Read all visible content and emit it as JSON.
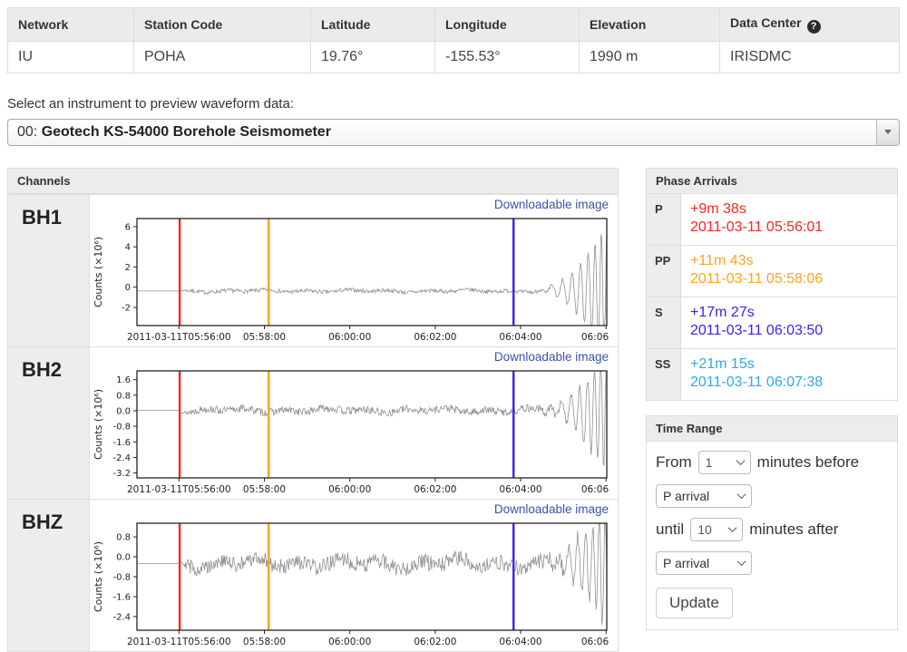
{
  "station_table": {
    "headers": [
      "Network",
      "Station Code",
      "Latitude",
      "Longitude",
      "Elevation",
      "Data Center"
    ],
    "help_icon": "?",
    "row": [
      "IU",
      "POHA",
      "19.76°",
      "-155.53°",
      "1990 m",
      "IRISDMC"
    ]
  },
  "instrument_select": {
    "label": "Select an instrument to preview waveform data:",
    "value_prefix": "00: ",
    "value_name": "Geotech KS-54000 Borehole Seismometer"
  },
  "channels_panel": {
    "title": "Channels",
    "download_link": "Downloadable image",
    "channels": [
      "BH1",
      "BH2",
      "BHZ"
    ]
  },
  "phase_panel": {
    "title": "Phase Arrivals",
    "rows": [
      {
        "phase": "P",
        "offset": "+9m 38s",
        "time": "2011-03-11 05:56:01",
        "color": "#f4281e"
      },
      {
        "phase": "PP",
        "offset": "+11m 43s",
        "time": "2011-03-11 05:58:06",
        "color": "#ffa41e"
      },
      {
        "phase": "S",
        "offset": "+17m 27s",
        "time": "2011-03-11 06:03:50",
        "color": "#3a22f0"
      },
      {
        "phase": "SS",
        "offset": "+21m 15s",
        "time": "2011-03-11 06:07:38",
        "color": "#2fa9e6"
      }
    ]
  },
  "time_range_panel": {
    "title": "Time Range",
    "from_label": "From",
    "before_value": "1",
    "before_label": "minutes before",
    "before_phase": "P arrival",
    "until_label": "until",
    "after_value": "10",
    "after_label": "minutes after",
    "after_phase": "P arrival",
    "update_label": "Update"
  },
  "chart_data": [
    {
      "type": "line",
      "name": "BH1",
      "ylabel": "Counts (×10⁶)",
      "yticks": [
        {
          "v": 6,
          "label": "6"
        },
        {
          "v": 4,
          "label": "4"
        },
        {
          "v": 2,
          "label": "2"
        },
        {
          "v": 0,
          "label": "0"
        },
        {
          "v": -2,
          "label": "-2"
        }
      ],
      "ylim": [
        -3.8,
        6.8
      ],
      "t_range": [
        0,
        660
      ],
      "xticks": [
        {
          "t": 59,
          "label": "2011-03-11T05:56:00"
        },
        {
          "t": 179,
          "label": "05:58:00"
        },
        {
          "t": 299,
          "label": "06:00:00"
        },
        {
          "t": 419,
          "label": "06:02:00"
        },
        {
          "t": 539,
          "label": "06:04:00"
        },
        {
          "t": 659,
          "label": "06:06"
        }
      ],
      "arrivals": [
        {
          "phase": "P",
          "t": 60,
          "color": "#f4281e"
        },
        {
          "phase": "PP",
          "t": 185,
          "color": "#ffa41e"
        },
        {
          "phase": "S",
          "t": 529,
          "color": "#3a22f0"
        }
      ],
      "baseline": -0.38,
      "noise_amp": 0.2,
      "burst_amp": 7.0,
      "burst_t0": 540,
      "p_onset": 60,
      "seed": 7,
      "line_color": "#909090"
    },
    {
      "type": "line",
      "name": "BH2",
      "ylabel": "Counts (×10⁶)",
      "yticks": [
        {
          "v": 1.6,
          "label": "1.6"
        },
        {
          "v": 0.8,
          "label": "0.8"
        },
        {
          "v": 0.0,
          "label": "0.0"
        },
        {
          "v": -0.8,
          "label": "-0.8"
        },
        {
          "v": -1.6,
          "label": "-1.6"
        },
        {
          "v": -2.4,
          "label": "-2.4"
        },
        {
          "v": -3.2,
          "label": "-3.2"
        }
      ],
      "ylim": [
        -3.45,
        2.05
      ],
      "t_range": [
        0,
        660
      ],
      "xticks": [
        {
          "t": 59,
          "label": "2011-03-11T05:56:00"
        },
        {
          "t": 179,
          "label": "05:58:00"
        },
        {
          "t": 299,
          "label": "06:00:00"
        },
        {
          "t": 419,
          "label": "06:02:00"
        },
        {
          "t": 539,
          "label": "06:04:00"
        },
        {
          "t": 659,
          "label": "06:06"
        }
      ],
      "arrivals": [
        {
          "phase": "P",
          "t": 60,
          "color": "#f4281e"
        },
        {
          "phase": "PP",
          "t": 185,
          "color": "#ffa41e"
        },
        {
          "phase": "S",
          "t": 529,
          "color": "#3a22f0"
        }
      ],
      "baseline": 0.02,
      "noise_amp": 0.2,
      "burst_amp": 3.4,
      "burst_t0": 540,
      "p_onset": 60,
      "seed": 13,
      "line_color": "#909090"
    },
    {
      "type": "line",
      "name": "BHZ",
      "ylabel": "Counts (×10⁶)",
      "yticks": [
        {
          "v": 0.8,
          "label": "0.8"
        },
        {
          "v": 0.0,
          "label": "0.0"
        },
        {
          "v": -0.8,
          "label": "-0.8"
        },
        {
          "v": -1.6,
          "label": "-1.6"
        },
        {
          "v": -2.4,
          "label": "-2.4"
        }
      ],
      "ylim": [
        -2.95,
        1.35
      ],
      "t_range": [
        0,
        660
      ],
      "xticks": [
        {
          "t": 59,
          "label": "2011-03-11T05:56:00"
        },
        {
          "t": 179,
          "label": "05:58:00"
        },
        {
          "t": 299,
          "label": "06:00:00"
        },
        {
          "t": 419,
          "label": "06:02:00"
        },
        {
          "t": 539,
          "label": "06:04:00"
        },
        {
          "t": 659,
          "label": "06:06"
        }
      ],
      "arrivals": [
        {
          "phase": "P",
          "t": 60,
          "color": "#f4281e"
        },
        {
          "phase": "PP",
          "t": 185,
          "color": "#ffa41e"
        },
        {
          "phase": "S",
          "t": 529,
          "color": "#3a22f0"
        }
      ],
      "baseline": -0.27,
      "noise_amp": 0.32,
      "burst_amp": 2.7,
      "burst_t0": 540,
      "p_onset": 60,
      "seed": 29,
      "line_color": "#909090"
    }
  ]
}
